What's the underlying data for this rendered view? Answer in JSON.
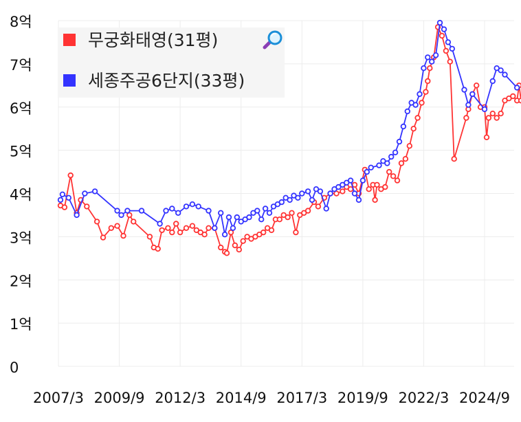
{
  "chart_data": {
    "type": "line",
    "title": "",
    "xlabel": "",
    "ylabel": "",
    "x_ticks": [
      "2007/3",
      "2009/9",
      "2012/3",
      "2014/9",
      "2017/3",
      "2019/9",
      "2022/3",
      "2024/9"
    ],
    "y_ticks": [
      "0",
      "1억",
      "2억",
      "3억",
      "4억",
      "5억",
      "6억",
      "7억",
      "8억"
    ],
    "ylim": [
      0,
      8
    ],
    "y_unit": "억",
    "grid": true,
    "legend_position": "top-left",
    "legend_icon": "magnifier-icon",
    "series": [
      {
        "name": "무궁화태영(31평)",
        "color": "#ff3333",
        "points": [
          [
            "2007-04",
            3.72
          ],
          [
            "2007-06",
            3.68
          ],
          [
            "2007-09",
            4.42
          ],
          [
            "2007-12",
            3.55
          ],
          [
            "2008-02",
            3.85
          ],
          [
            "2008-05",
            3.7
          ],
          [
            "2008-10",
            3.35
          ],
          [
            "2009-01",
            2.98
          ],
          [
            "2009-05",
            3.2
          ],
          [
            "2009-08",
            3.25
          ],
          [
            "2009-11",
            3.02
          ],
          [
            "2010-02",
            3.5
          ],
          [
            "2010-04",
            3.35
          ],
          [
            "2010-12",
            3.0
          ],
          [
            "2011-02",
            2.75
          ],
          [
            "2011-04",
            2.72
          ],
          [
            "2011-06",
            3.15
          ],
          [
            "2011-09",
            3.2
          ],
          [
            "2011-11",
            3.1
          ],
          [
            "2012-01",
            3.3
          ],
          [
            "2012-03",
            3.1
          ],
          [
            "2012-06",
            3.2
          ],
          [
            "2012-09",
            3.25
          ],
          [
            "2012-11",
            3.15
          ],
          [
            "2013-01",
            3.1
          ],
          [
            "2013-03",
            3.05
          ],
          [
            "2013-05",
            3.2
          ],
          [
            "2013-08",
            3.2
          ],
          [
            "2013-11",
            2.75
          ],
          [
            "2014-01",
            2.65
          ],
          [
            "2014-02",
            2.62
          ],
          [
            "2014-04",
            3.1
          ],
          [
            "2014-06",
            2.8
          ],
          [
            "2014-08",
            2.7
          ],
          [
            "2014-10",
            2.9
          ],
          [
            "2014-12",
            3.0
          ],
          [
            "2015-02",
            2.95
          ],
          [
            "2015-04",
            3.0
          ],
          [
            "2015-06",
            3.05
          ],
          [
            "2015-08",
            3.1
          ],
          [
            "2015-10",
            3.2
          ],
          [
            "2015-12",
            3.15
          ],
          [
            "2016-02",
            3.4
          ],
          [
            "2016-04",
            3.4
          ],
          [
            "2016-06",
            3.5
          ],
          [
            "2016-08",
            3.45
          ],
          [
            "2016-10",
            3.55
          ],
          [
            "2016-12",
            3.1
          ],
          [
            "2017-02",
            3.5
          ],
          [
            "2017-04",
            3.55
          ],
          [
            "2017-06",
            3.6
          ],
          [
            "2017-09",
            3.8
          ],
          [
            "2017-11",
            3.7
          ],
          [
            "2018-02",
            3.9
          ],
          [
            "2018-05",
            4.0
          ],
          [
            "2018-08",
            4.0
          ],
          [
            "2018-11",
            4.05
          ],
          [
            "2019-01",
            4.15
          ],
          [
            "2019-03",
            4.1
          ],
          [
            "2019-05",
            4.2
          ],
          [
            "2019-07",
            4.0
          ],
          [
            "2019-10",
            4.55
          ],
          [
            "2019-12",
            4.1
          ],
          [
            "2020-02",
            4.2
          ],
          [
            "2020-03",
            3.85
          ],
          [
            "2020-04",
            4.2
          ],
          [
            "2020-06",
            4.1
          ],
          [
            "2020-08",
            4.15
          ],
          [
            "2020-10",
            4.5
          ],
          [
            "2020-12",
            4.4
          ],
          [
            "2021-02",
            4.3
          ],
          [
            "2021-04",
            4.7
          ],
          [
            "2021-06",
            4.8
          ],
          [
            "2021-08",
            5.1
          ],
          [
            "2021-10",
            5.5
          ],
          [
            "2021-12",
            5.75
          ],
          [
            "2022-02",
            6.1
          ],
          [
            "2022-04",
            6.35
          ],
          [
            "2022-05",
            6.6
          ],
          [
            "2022-06",
            6.9
          ],
          [
            "2022-08",
            7.15
          ],
          [
            "2022-10",
            7.85
          ],
          [
            "2022-12",
            7.65
          ],
          [
            "2023-02",
            7.3
          ],
          [
            "2023-04",
            7.05
          ],
          [
            "2023-06",
            4.8
          ],
          [
            "2023-12",
            5.75
          ],
          [
            "2024-01",
            5.95
          ],
          [
            "2024-03",
            6.3
          ],
          [
            "2024-05",
            6.5
          ],
          [
            "2024-07",
            6.0
          ],
          [
            "2024-09",
            6.0
          ],
          [
            "2024-10",
            5.3
          ],
          [
            "2024-11",
            5.75
          ],
          [
            "2025-01",
            5.85
          ],
          [
            "2025-03",
            5.75
          ],
          [
            "2025-05",
            5.85
          ],
          [
            "2025-07",
            6.15
          ],
          [
            "2025-09",
            6.2
          ],
          [
            "2025-11",
            6.25
          ],
          [
            "2026-01",
            6.15
          ],
          [
            "2026-02",
            6.5
          ],
          [
            "2026-03",
            6.15
          ]
        ]
      },
      {
        "name": "세종주공6단지(33평)",
        "color": "#3333ff",
        "points": [
          [
            "2007-04",
            3.85
          ],
          [
            "2007-05",
            3.98
          ],
          [
            "2007-08",
            3.9
          ],
          [
            "2007-12",
            3.5
          ],
          [
            "2008-04",
            4.0
          ],
          [
            "2008-09",
            4.05
          ],
          [
            "2009-08",
            3.6
          ],
          [
            "2009-10",
            3.5
          ],
          [
            "2010-01",
            3.6
          ],
          [
            "2010-08",
            3.6
          ],
          [
            "2011-05",
            3.3
          ],
          [
            "2011-08",
            3.6
          ],
          [
            "2011-11",
            3.65
          ],
          [
            "2012-02",
            3.55
          ],
          [
            "2012-06",
            3.7
          ],
          [
            "2012-09",
            3.75
          ],
          [
            "2012-12",
            3.7
          ],
          [
            "2013-05",
            3.6
          ],
          [
            "2013-08",
            3.2
          ],
          [
            "2013-11",
            3.55
          ],
          [
            "2014-01",
            3.05
          ],
          [
            "2014-03",
            3.45
          ],
          [
            "2014-05",
            3.2
          ],
          [
            "2014-07",
            3.45
          ],
          [
            "2014-09",
            3.35
          ],
          [
            "2014-11",
            3.4
          ],
          [
            "2015-01",
            3.45
          ],
          [
            "2015-03",
            3.55
          ],
          [
            "2015-05",
            3.6
          ],
          [
            "2015-07",
            3.4
          ],
          [
            "2015-09",
            3.65
          ],
          [
            "2015-11",
            3.55
          ],
          [
            "2016-01",
            3.7
          ],
          [
            "2016-03",
            3.75
          ],
          [
            "2016-05",
            3.8
          ],
          [
            "2016-07",
            3.9
          ],
          [
            "2016-09",
            3.85
          ],
          [
            "2016-11",
            3.95
          ],
          [
            "2017-01",
            3.9
          ],
          [
            "2017-03",
            4.0
          ],
          [
            "2017-06",
            4.05
          ],
          [
            "2017-08",
            3.85
          ],
          [
            "2017-10",
            4.1
          ],
          [
            "2017-12",
            4.05
          ],
          [
            "2018-03",
            3.65
          ],
          [
            "2018-05",
            4.0
          ],
          [
            "2018-07",
            4.1
          ],
          [
            "2018-09",
            4.15
          ],
          [
            "2018-11",
            4.2
          ],
          [
            "2019-01",
            4.25
          ],
          [
            "2019-03",
            4.3
          ],
          [
            "2019-05",
            4.0
          ],
          [
            "2019-07",
            3.85
          ],
          [
            "2019-09",
            4.3
          ],
          [
            "2019-11",
            4.5
          ],
          [
            "2020-01",
            4.6
          ],
          [
            "2020-05",
            4.65
          ],
          [
            "2020-07",
            4.75
          ],
          [
            "2020-09",
            4.7
          ],
          [
            "2020-11",
            4.85
          ],
          [
            "2021-01",
            4.95
          ],
          [
            "2021-03",
            5.2
          ],
          [
            "2021-05",
            5.55
          ],
          [
            "2021-07",
            5.9
          ],
          [
            "2021-09",
            6.1
          ],
          [
            "2021-11",
            6.05
          ],
          [
            "2022-01",
            6.3
          ],
          [
            "2022-03",
            6.9
          ],
          [
            "2022-05",
            7.15
          ],
          [
            "2022-07",
            7.05
          ],
          [
            "2022-09",
            7.2
          ],
          [
            "2022-11",
            7.95
          ],
          [
            "2023-01",
            7.8
          ],
          [
            "2023-03",
            7.5
          ],
          [
            "2023-05",
            7.35
          ],
          [
            "2023-11",
            6.4
          ],
          [
            "2024-01",
            6.05
          ],
          [
            "2024-03",
            6.3
          ],
          [
            "2024-09",
            5.95
          ],
          [
            "2025-01",
            6.6
          ],
          [
            "2025-03",
            6.9
          ],
          [
            "2025-05",
            6.85
          ],
          [
            "2025-07",
            6.75
          ],
          [
            "2026-01",
            6.45
          ]
        ]
      }
    ]
  }
}
